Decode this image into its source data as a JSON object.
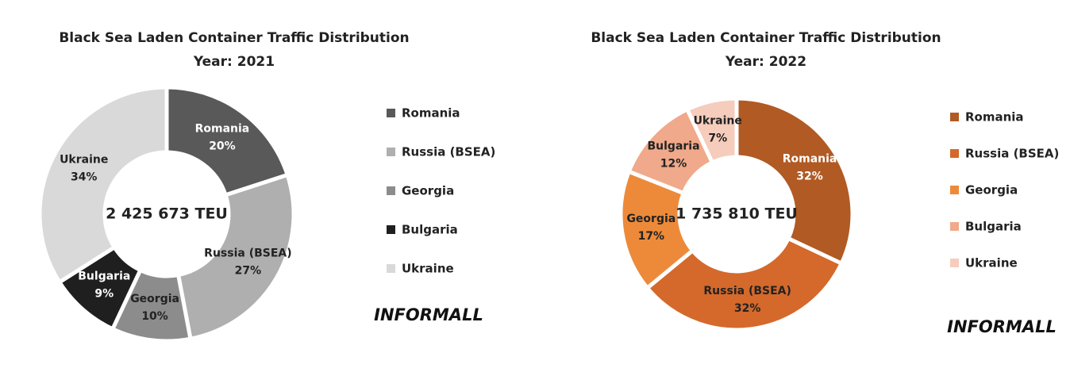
{
  "chart_data": [
    {
      "type": "donut",
      "title": "Black Sea Laden Container Traffic Distribution",
      "subtitle": "Year: 2021",
      "center_label": "2 425 673 TEU",
      "categories": [
        "Romania",
        "Russia (BSEA)",
        "Georgia",
        "Bulgaria",
        "Ukraine"
      ],
      "values": [
        20,
        27,
        10,
        9,
        34
      ],
      "value_labels": [
        "20%",
        "27%",
        "10%",
        "9%",
        "34%"
      ],
      "colors": [
        "#595959",
        "#afafaf",
        "#8c8c8c",
        "#1f1f1f",
        "#d9d9d9"
      ],
      "logo": "INFORMALL"
    },
    {
      "type": "donut",
      "title": "Black Sea Laden Container Traffic Distribution",
      "subtitle": "Year: 2022",
      "center_label": "1 735 810 TEU",
      "categories": [
        "Romania",
        "Russia (BSEA)",
        "Georgia",
        "Bulgaria",
        "Ukraine"
      ],
      "values": [
        32,
        32,
        17,
        12,
        7
      ],
      "value_labels": [
        "32%",
        "32%",
        "17%",
        "12%",
        "7%"
      ],
      "colors": [
        "#b15a24",
        "#d4692b",
        "#ed8a3a",
        "#f0a98a",
        "#f6ccbc"
      ],
      "logo": "INFORMALL"
    }
  ]
}
